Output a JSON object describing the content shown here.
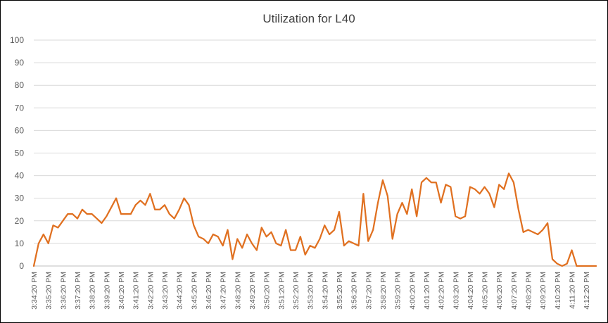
{
  "chart_data": {
    "type": "line",
    "title": "Utilization for L40",
    "xlabel": "",
    "ylabel": "",
    "ylim": [
      0,
      100
    ],
    "yticks": [
      0,
      10,
      20,
      30,
      40,
      50,
      60,
      70,
      80,
      90,
      100
    ],
    "grid": "horizontal",
    "legend": "none",
    "color": "#e07020",
    "x_tick_labels": [
      "3:34:20 PM",
      "3:35:20 PM",
      "3:36:20 PM",
      "3:37:20 PM",
      "3:38:20 PM",
      "3:39:20 PM",
      "3:40:20 PM",
      "3:41:20 PM",
      "3:42:20 PM",
      "3:43:20 PM",
      "3:44:20 PM",
      "3:45:20 PM",
      "3:46:20 PM",
      "3:47:20 PM",
      "3:48:20 PM",
      "3:49:20 PM",
      "3:50:20 PM",
      "3:51:20 PM",
      "3:52:20 PM",
      "3:53:20 PM",
      "3:54:20 PM",
      "3:55:20 PM",
      "3:56:20 PM",
      "3:57:20 PM",
      "3:58:20 PM",
      "3:59:20 PM",
      "4:00:20 PM",
      "4:01:20 PM",
      "4:02:20 PM",
      "4:03:20 PM",
      "4:04:20 PM",
      "4:05:20 PM",
      "4:06:20 PM",
      "4:07:20 PM",
      "4:08:20 PM",
      "4:09:20 PM",
      "4:10:20 PM",
      "4:11:20 PM",
      "4:12:20 PM"
    ],
    "sample_interval_seconds": 20,
    "series": [
      {
        "values": [
          0,
          10,
          14,
          10,
          18,
          17,
          20,
          23,
          23,
          21,
          25,
          23,
          23,
          21,
          19,
          22,
          26,
          30,
          23,
          23,
          23,
          27,
          29,
          27,
          32,
          25,
          25,
          27,
          23,
          21,
          25,
          30,
          27,
          18,
          13,
          12,
          10,
          14,
          13,
          9,
          16,
          3,
          12,
          8,
          14,
          10,
          7,
          17,
          13,
          15,
          10,
          9,
          16,
          7,
          7,
          13,
          5,
          9,
          8,
          12,
          18,
          14,
          16,
          24,
          9,
          11,
          10,
          9,
          32,
          11,
          16,
          28,
          38,
          31,
          12,
          23,
          28,
          23,
          34,
          22,
          37,
          39,
          37,
          37,
          28,
          36,
          35,
          22,
          21,
          22,
          35,
          34,
          32,
          35,
          32,
          26,
          36,
          34,
          41,
          37,
          25,
          15,
          16,
          15,
          14,
          16,
          19,
          3,
          1,
          0,
          1,
          7,
          0,
          0,
          0,
          0,
          0
        ]
      }
    ]
  }
}
